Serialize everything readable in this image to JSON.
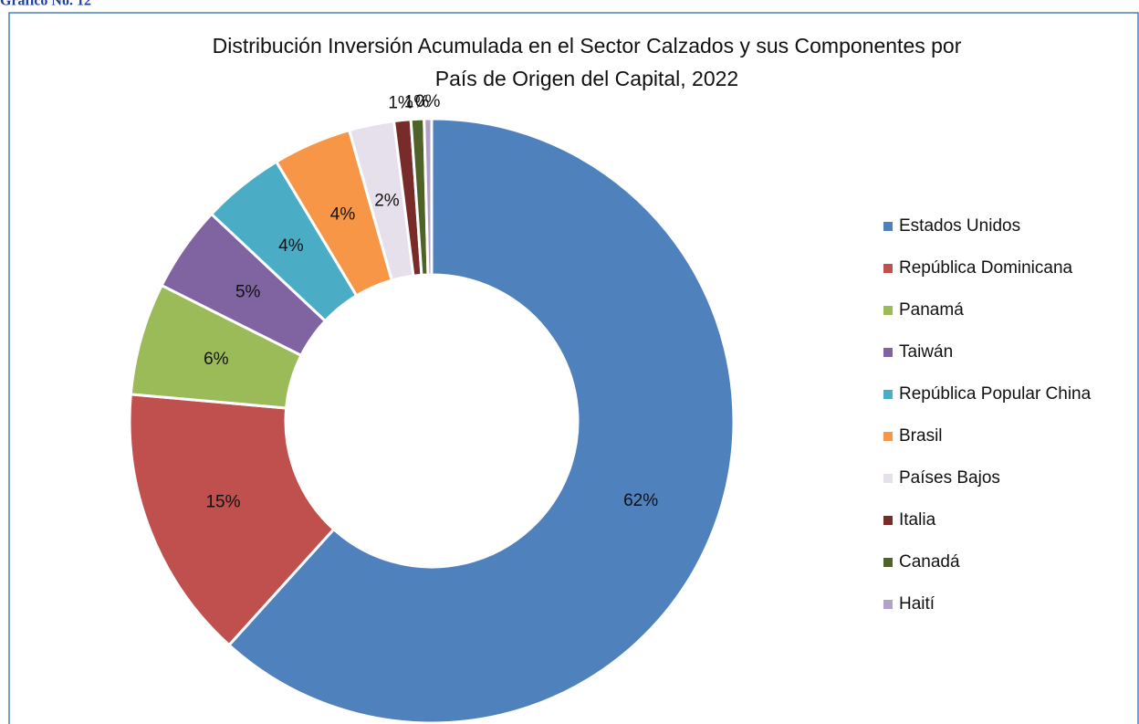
{
  "header": "Gráfico No. 12",
  "chart_data": {
    "type": "doughnut",
    "title": "Distribución Inversión Acumulada en el Sector Calzados y sus Componentes por País de Origen del Capital, 2022",
    "categories": [
      "Estados Unidos",
      "República Dominicana",
      "Panamá",
      "Taiwán",
      "República Popular China",
      "Brasil",
      "Países Bajos",
      "Italia",
      "Canadá",
      "Haití"
    ],
    "values": [
      61.7,
      14.7,
      6.0,
      4.6,
      4.4,
      4.2,
      2.4,
      0.9,
      0.7,
      0.4
    ],
    "value_labels": [
      "62%",
      "15%",
      "6%",
      "5%",
      "4%",
      "4%",
      "2%",
      "1%",
      "1%",
      "0%"
    ],
    "colors": [
      "#4f81bd",
      "#c0504d",
      "#9bbb59",
      "#8064a2",
      "#4bacc6",
      "#f79646",
      "#e6e0ec",
      "#772c2a",
      "#4f6228",
      "#b3a2c7"
    ],
    "legend": "right"
  }
}
